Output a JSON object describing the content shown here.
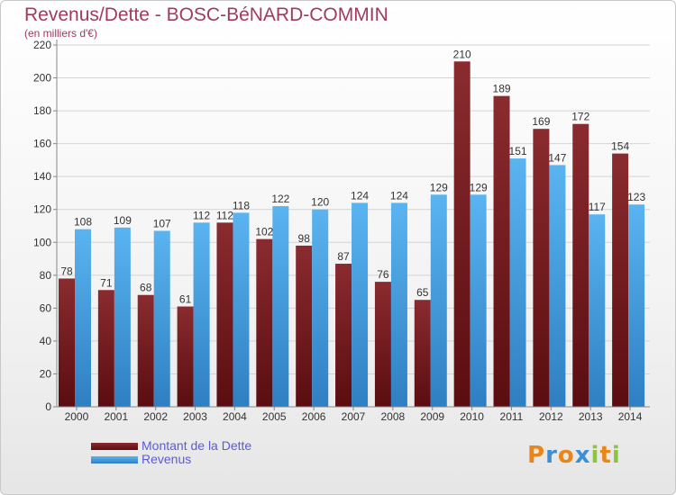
{
  "title": "Revenus/Dette - BOSC-BéNARD-COMMIN",
  "subtitle": "(en milliers d'€)",
  "chart_data": {
    "type": "bar",
    "categories": [
      "2000",
      "2001",
      "2002",
      "2003",
      "2004",
      "2005",
      "2006",
      "2007",
      "2008",
      "2009",
      "2010",
      "2011",
      "2012",
      "2013",
      "2014"
    ],
    "series": [
      {
        "name": "Montant de la Dette",
        "color": "#7a1f23",
        "values": [
          78,
          71,
          68,
          61,
          112,
          102,
          98,
          87,
          76,
          65,
          210,
          189,
          169,
          172,
          154
        ]
      },
      {
        "name": "Revenus",
        "color": "#4da6e8",
        "values": [
          108,
          109,
          107,
          112,
          118,
          122,
          120,
          124,
          124,
          129,
          129,
          151,
          147,
          117,
          123
        ]
      }
    ],
    "ylim": [
      0,
      220
    ],
    "yticks": [
      0,
      20,
      40,
      60,
      80,
      100,
      120,
      140,
      160,
      180,
      200,
      220
    ],
    "grid": true,
    "legend_position": "bottom-left"
  },
  "legend": [
    {
      "label": "Montant de la Dette",
      "color": "#7a1f23"
    },
    {
      "label": "Revenus",
      "color": "#4da6e8"
    }
  ],
  "logo": {
    "letters": [
      "P",
      "r",
      "o",
      "x",
      "i",
      "t",
      "i"
    ],
    "colors": [
      "#e8861a",
      "#3a8fd6",
      "#e8861a",
      "#3a8fd6",
      "#8cc63f",
      "#e8861a",
      "#8cc63f"
    ]
  }
}
